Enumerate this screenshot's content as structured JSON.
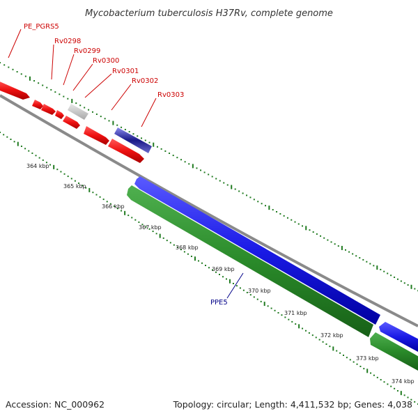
{
  "header": {
    "title": "Mycobacterium tuberculosis H37Rv, complete genome"
  },
  "footer": {
    "accession": "Accession: NC_000962",
    "topology": "Topology: circular; Length: 4,411,532 bp; Genes: 4,038"
  },
  "colors": {
    "forward_gene": "#ee1111",
    "reverse_gene_blue": "#1a1ae6",
    "reverse_gene_green": "#2a8a2a",
    "hypothetical": "#c8c8c8",
    "backbone": "#8a8a8a",
    "tick": "#1f7a1f",
    "label_red": "#cc0000",
    "label_blue": "#000088"
  },
  "scale_labels": [
    "364 kbp",
    "365 kbp",
    "366 kbp",
    "367 kbp",
    "368 kbp",
    "369 kbp",
    "370 kbp",
    "371 kbp",
    "372 kbp",
    "373 kbp",
    "374 kbp"
  ],
  "gene_labels": [
    "PE_PGRS5",
    "Rv0298",
    "Rv0299",
    "Rv0300",
    "Rv0301",
    "Rv0302",
    "Rv0303",
    "PPE5"
  ]
}
